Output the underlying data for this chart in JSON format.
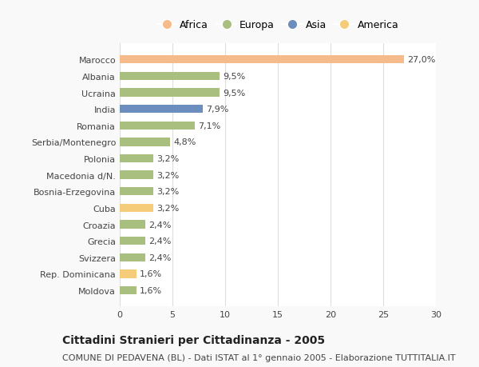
{
  "categories": [
    "Marocco",
    "Albania",
    "Ucraina",
    "India",
    "Romania",
    "Serbia/Montenegro",
    "Polonia",
    "Macedonia d/N.",
    "Bosnia-Erzegovina",
    "Cuba",
    "Croazia",
    "Grecia",
    "Svizzera",
    "Rep. Dominicana",
    "Moldova"
  ],
  "values": [
    27.0,
    9.5,
    9.5,
    7.9,
    7.1,
    4.8,
    3.2,
    3.2,
    3.2,
    3.2,
    2.4,
    2.4,
    2.4,
    1.6,
    1.6
  ],
  "labels": [
    "27,0%",
    "9,5%",
    "9,5%",
    "7,9%",
    "7,1%",
    "4,8%",
    "3,2%",
    "3,2%",
    "3,2%",
    "3,2%",
    "2,4%",
    "2,4%",
    "2,4%",
    "1,6%",
    "1,6%"
  ],
  "continents": [
    "Africa",
    "Europa",
    "Europa",
    "Asia",
    "Europa",
    "Europa",
    "Europa",
    "Europa",
    "Europa",
    "America",
    "Europa",
    "Europa",
    "Europa",
    "America",
    "Europa"
  ],
  "colors": {
    "Africa": "#F5BB8A",
    "Europa": "#A8BF80",
    "Asia": "#6B8EBE",
    "America": "#F5CC7A"
  },
  "legend_order": [
    "Africa",
    "Europa",
    "Asia",
    "America"
  ],
  "title": "Cittadini Stranieri per Cittadinanza - 2005",
  "subtitle": "COMUNE DI PEDAVENA (BL) - Dati ISTAT al 1° gennaio 2005 - Elaborazione TUTTITALIA.IT",
  "xlim": [
    0,
    30
  ],
  "xticks": [
    0,
    5,
    10,
    15,
    20,
    25,
    30
  ],
  "background_color": "#f9f9f9",
  "plot_bg": "#ffffff",
  "grid_color": "#dddddd",
  "text_color": "#444444",
  "title_fontsize": 10,
  "subtitle_fontsize": 8,
  "tick_fontsize": 8,
  "label_fontsize": 8,
  "legend_fontsize": 9
}
